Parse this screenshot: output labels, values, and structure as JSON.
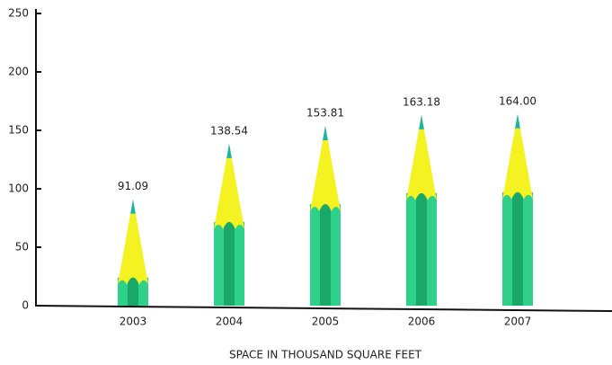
{
  "chart_data": {
    "type": "pencil-bar",
    "x_label": "SPACE IN THOUSAND SQUARE FEET",
    "categories": [
      "2003",
      "2004",
      "2005",
      "2006",
      "2007"
    ],
    "values": [
      91.09,
      138.54,
      153.81,
      163.18,
      164.0
    ],
    "value_labels": [
      "91.09",
      "138.54",
      "153.81",
      "163.18",
      "164.00"
    ],
    "colors": {
      "body": "#2fd08a",
      "body_dark": "#1aa86a",
      "cone": "#f5f222",
      "tip": "#1ab4a4"
    },
    "ylim": [
      0,
      250
    ],
    "yticks": [
      0,
      50,
      100,
      150,
      200,
      250
    ],
    "grid": false
  }
}
